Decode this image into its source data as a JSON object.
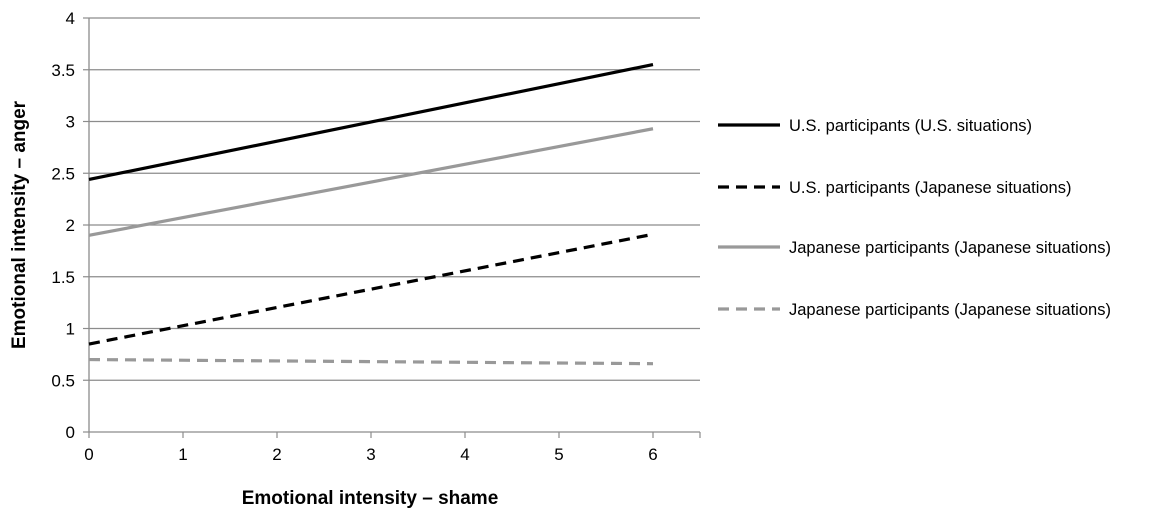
{
  "chart_data": {
    "type": "line",
    "title": "",
    "xlabel": "Emotional intensity – shame",
    "ylabel": "Emotional intensity – anger",
    "xlim": [
      0,
      6.5
    ],
    "ylim": [
      0,
      4
    ],
    "xticks": [
      "0",
      "1",
      "2",
      "3",
      "4",
      "5",
      "6"
    ],
    "yticks": [
      "0",
      "0.5",
      "1",
      "1.5",
      "2",
      "2.5",
      "3",
      "3.5",
      "4"
    ],
    "grid": true,
    "legend_position": "right",
    "series": [
      {
        "name": "U.S. participants (U.S. situations)",
        "color": "#000000",
        "dash": "solid",
        "x": [
          0,
          6
        ],
        "y": [
          2.44,
          3.55
        ]
      },
      {
        "name": "U.S. participants (Japanese situations)",
        "color": "#000000",
        "dash": "dashed",
        "x": [
          0,
          6
        ],
        "y": [
          0.85,
          1.91
        ]
      },
      {
        "name": "Japanese participants (Japanese situations)",
        "color": "#999999",
        "dash": "solid",
        "x": [
          0,
          6
        ],
        "y": [
          1.9,
          2.93
        ]
      },
      {
        "name": "Japanese participants (Japanese situations)",
        "color": "#999999",
        "dash": "dashed",
        "x": [
          0,
          6
        ],
        "y": [
          0.7,
          0.66
        ]
      }
    ]
  }
}
